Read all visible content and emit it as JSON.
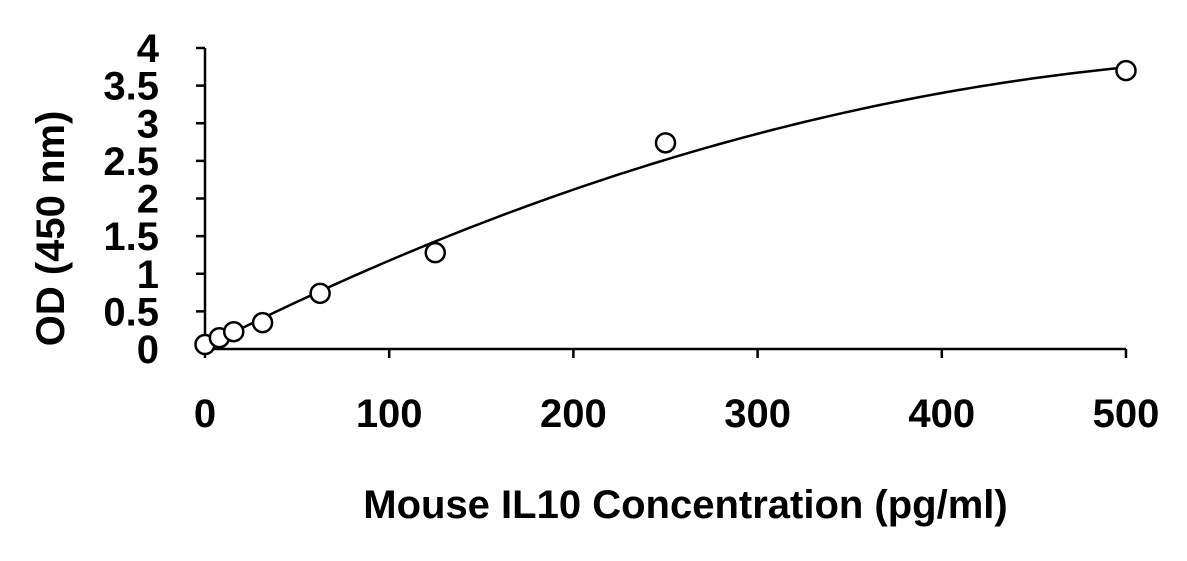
{
  "chart_data": {
    "type": "scatter",
    "title": "",
    "xlabel": "Mouse IL10 Concentration (pg/ml)",
    "ylabel": "OD (450 nm)",
    "xlim": [
      0,
      500
    ],
    "ylim": [
      0,
      4
    ],
    "x_ticks": [
      "0",
      "100",
      "200",
      "300",
      "400",
      "500"
    ],
    "y_ticks": [
      "0",
      "0.5",
      "1",
      "1.5",
      "2",
      "2.5",
      "3",
      "3.5",
      "4"
    ],
    "grid": false,
    "legend": "none",
    "series": [
      {
        "points": [
          {
            "x": 0,
            "y": 0.06
          },
          {
            "x": 7.8,
            "y": 0.15
          },
          {
            "x": 15.6,
            "y": 0.23
          },
          {
            "x": 31.25,
            "y": 0.35
          },
          {
            "x": 62.5,
            "y": 0.74
          },
          {
            "x": 125,
            "y": 1.28
          },
          {
            "x": 250,
            "y": 2.74
          },
          {
            "x": 500,
            "y": 3.7
          }
        ],
        "fit": {
          "type": "polynomial",
          "coefficients": [
            0.03,
            0.01245,
            -1.005e-05
          ]
        },
        "color": "#000000",
        "marker": "open-circle"
      }
    ]
  }
}
